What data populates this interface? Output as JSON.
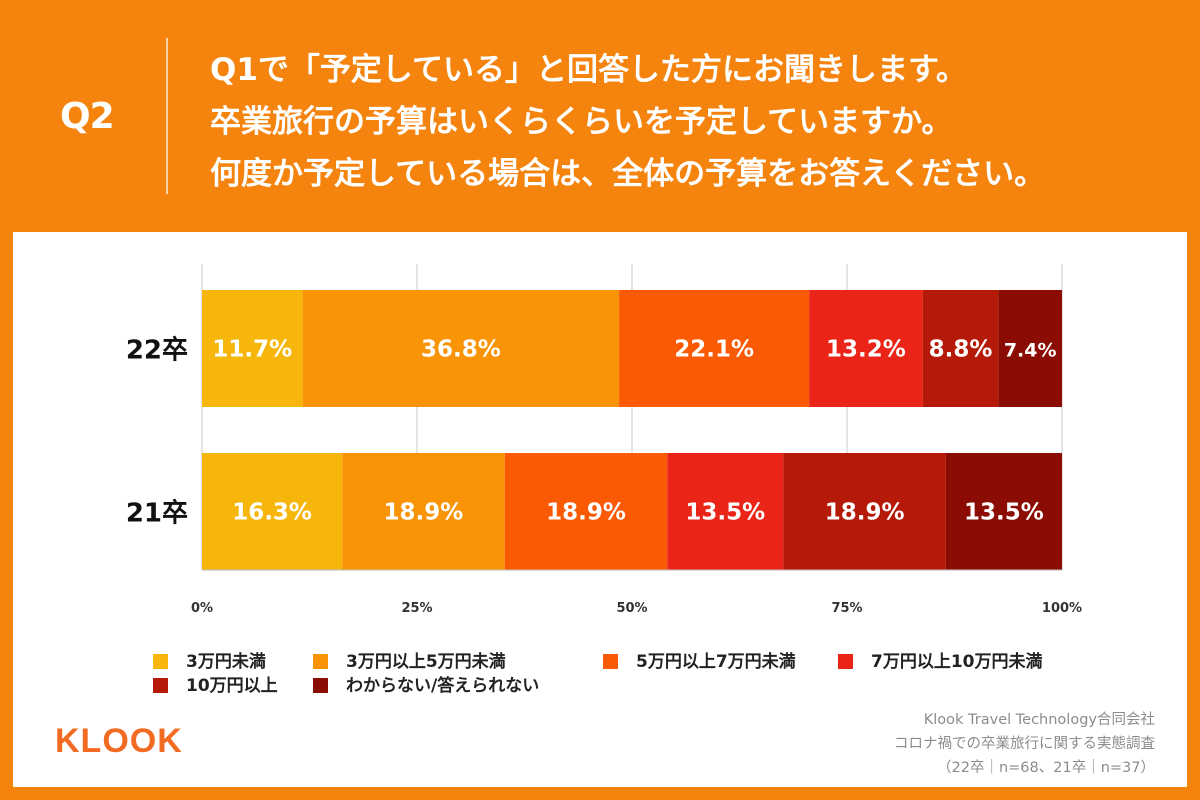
{
  "header": {
    "question_label": "Q2",
    "question_lines": [
      "Q1で「予定している」と回答した方にお聞きします。",
      "卒業旅行の予算はいくらくらいを予定していますか。",
      "何度か予定している場合は、全体の予算をお答えください。"
    ]
  },
  "chart_data": {
    "type": "bar",
    "orientation": "horizontal",
    "stacked": true,
    "percent": true,
    "categories": [
      "22卒",
      "21卒"
    ],
    "series": [
      {
        "name": "3万円未満",
        "color": "#f6b60c",
        "values": [
          11.7,
          16.3
        ],
        "labels": [
          "11.7%",
          "16.3%"
        ]
      },
      {
        "name": "3万円以上5万円未満",
        "color": "#f99406",
        "values": [
          36.8,
          18.9
        ],
        "labels": [
          "36.8%",
          "18.9%"
        ]
      },
      {
        "name": "5万円以上7万円未満",
        "color": "#fa5a04",
        "values": [
          22.1,
          18.9
        ],
        "labels": [
          "22.1%",
          "18.9%"
        ]
      },
      {
        "name": "7万円以上10万円未満",
        "color": "#ea2417",
        "values": [
          13.2,
          13.5
        ],
        "labels": [
          "13.2%",
          "13.5%"
        ]
      },
      {
        "name": "10万円以上",
        "color": "#b51a08",
        "values": [
          8.8,
          18.9
        ],
        "labels": [
          "8.8%",
          "18.9%"
        ]
      },
      {
        "name": "わからない/答えられない",
        "color": "#8a0c02",
        "values": [
          7.4,
          13.5
        ],
        "labels": [
          "7.4%",
          "13.5%"
        ]
      }
    ],
    "xlim": [
      0,
      100
    ],
    "xticks": [
      "0%",
      "25%",
      "50%",
      "75%",
      "100%"
    ],
    "grid": true,
    "legend": "bottom"
  },
  "footer": {
    "logo": "KLOOK",
    "source_lines": [
      "Klook Travel Technology合同会社",
      "コロナ禍での卒業旅行に関する実態調査",
      "（22卒｜n=68、21卒｜n=37）"
    ]
  }
}
